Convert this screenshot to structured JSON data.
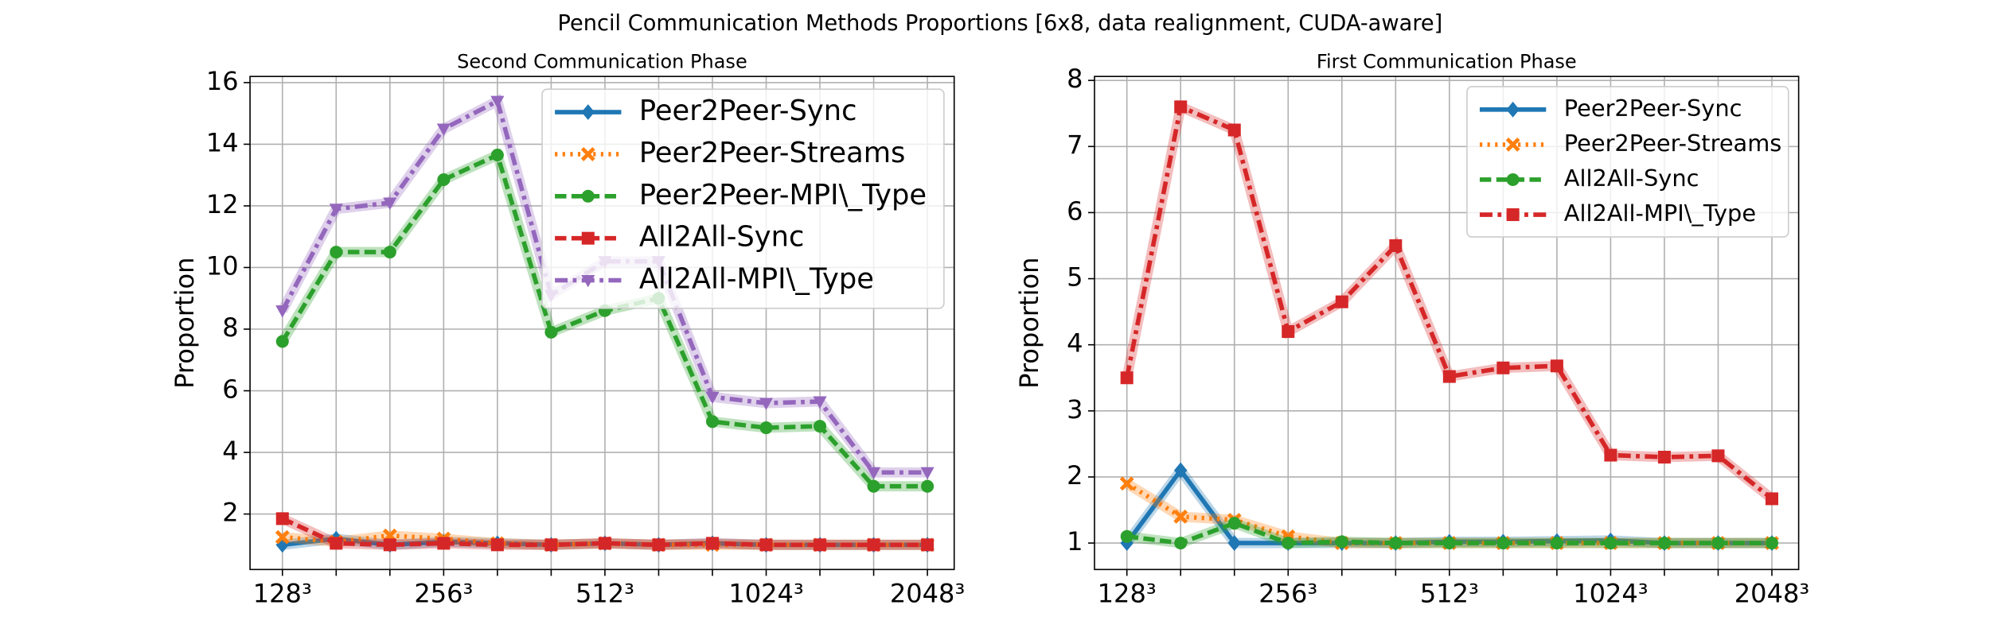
{
  "title": "Pencil Communication Methods Proportions [6x8, data realignment, CUDA-aware]",
  "chart_data": [
    {
      "type": "line",
      "title": "Second Communication Phase",
      "ylabel": "Proportion",
      "categories": [
        "128³",
        null,
        null,
        "256³",
        null,
        null,
        "512³",
        null,
        null,
        "1024³",
        null,
        null,
        "2048³"
      ],
      "ylim": [
        0.2,
        16.2
      ],
      "yticks": [
        2,
        4,
        6,
        8,
        10,
        12,
        14,
        16
      ],
      "grid": true,
      "legend": "upper right",
      "series": [
        {
          "name": "Peer2Peer-Sync",
          "color": "#1f77b4",
          "linestyle": "solid",
          "marker": "diamond",
          "values": [
            1.0,
            1.2,
            1.0,
            1.1,
            1.05,
            1.0,
            1.05,
            1.0,
            1.05,
            1.0,
            1.0,
            1.0,
            1.0
          ]
        },
        {
          "name": "Peer2Peer-Streams",
          "color": "#ff7f0e",
          "linestyle": "dotted",
          "marker": "x",
          "values": [
            1.25,
            1.1,
            1.3,
            1.2,
            1.05,
            1.0,
            1.05,
            1.0,
            1.0,
            1.0,
            1.0,
            1.0,
            1.0
          ]
        },
        {
          "name": "Peer2Peer-MPI\\_Type",
          "color": "#2ca02c",
          "linestyle": "dashed",
          "marker": "circle",
          "values": [
            7.6,
            10.5,
            10.5,
            12.85,
            13.65,
            7.9,
            8.6,
            9.0,
            5.0,
            4.8,
            4.85,
            2.9,
            2.9
          ]
        },
        {
          "name": "All2All-Sync",
          "color": "#d62728",
          "linestyle": "dashed",
          "marker": "square",
          "values": [
            1.85,
            1.05,
            1.0,
            1.05,
            1.0,
            1.0,
            1.05,
            1.0,
            1.05,
            1.0,
            1.0,
            1.0,
            1.0
          ]
        },
        {
          "name": "All2All-MPI\\_Type",
          "color": "#9467bd",
          "linestyle": "dashdot",
          "marker": "triangle-down",
          "values": [
            8.6,
            11.9,
            12.1,
            14.5,
            15.4,
            9.1,
            10.2,
            10.2,
            5.8,
            5.6,
            5.65,
            3.35,
            3.35
          ]
        }
      ]
    },
    {
      "type": "line",
      "title": "First Communication Phase",
      "ylabel": "Proportion",
      "categories": [
        "128³",
        null,
        null,
        "256³",
        null,
        null,
        "512³",
        null,
        null,
        "1024³",
        null,
        null,
        "2048³"
      ],
      "ylim": [
        0.6,
        8.06
      ],
      "yticks": [
        1,
        2,
        3,
        4,
        5,
        6,
        7,
        8
      ],
      "grid": true,
      "legend": "upper right",
      "series": [
        {
          "name": "Peer2Peer-Sync",
          "color": "#1f77b4",
          "linestyle": "solid",
          "marker": "diamond",
          "values": [
            1.0,
            2.1,
            1.0,
            1.0,
            1.0,
            1.0,
            1.02,
            1.02,
            1.03,
            1.04,
            1.0,
            1.0,
            1.0
          ]
        },
        {
          "name": "Peer2Peer-Streams",
          "color": "#ff7f0e",
          "linestyle": "dotted",
          "marker": "x",
          "values": [
            1.9,
            1.4,
            1.35,
            1.1,
            1.0,
            1.0,
            1.0,
            1.0,
            1.0,
            1.0,
            1.0,
            1.0,
            1.0
          ]
        },
        {
          "name": "All2All-Sync",
          "color": "#2ca02c",
          "linestyle": "dashed",
          "marker": "circle",
          "values": [
            1.1,
            1.0,
            1.3,
            1.0,
            1.02,
            1.0,
            1.0,
            1.0,
            1.0,
            1.0,
            1.0,
            1.0,
            1.0
          ]
        },
        {
          "name": "All2All-MPI\\_Type",
          "color": "#d62728",
          "linestyle": "dashdot",
          "marker": "square",
          "values": [
            3.5,
            7.6,
            7.25,
            4.2,
            4.65,
            5.5,
            3.52,
            3.65,
            3.68,
            2.33,
            2.3,
            2.32,
            1.67
          ]
        }
      ]
    }
  ]
}
